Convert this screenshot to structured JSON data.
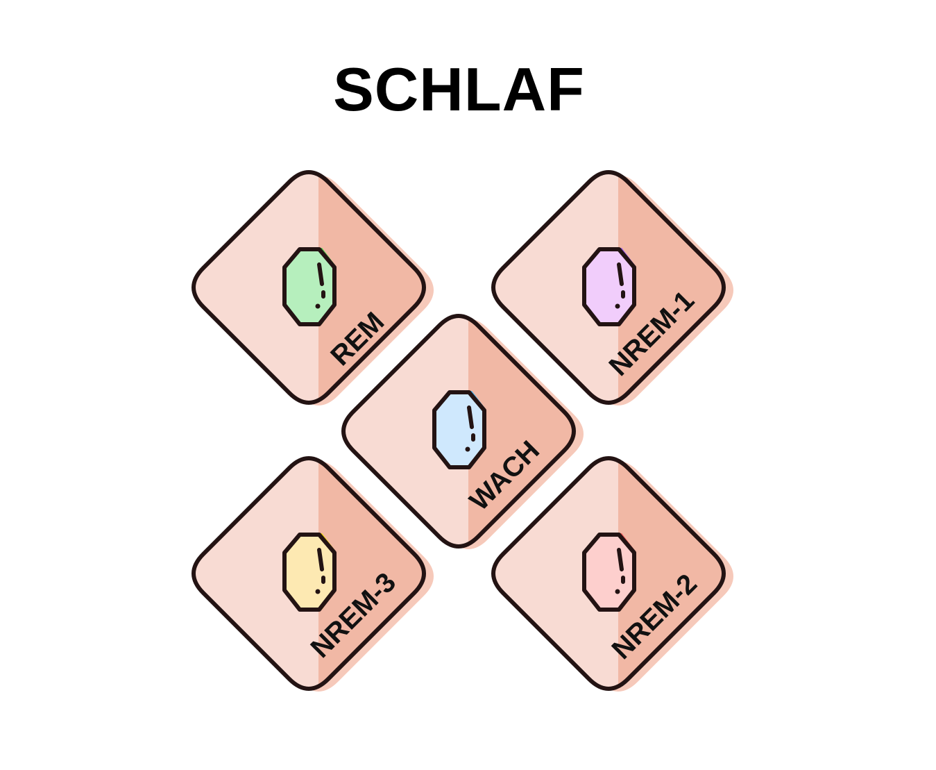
{
  "title": "SCHLAF",
  "colors": {
    "tile_light": "#f8dbd3",
    "tile_dark": "#f1b8a5",
    "tile_shadow": "#f6c9ba",
    "outline": "#231313"
  },
  "stages": [
    {
      "id": "rem",
      "label": "REM",
      "gem_color": "#b6efbd",
      "gem_accent": "#4fd24f",
      "icon": "gem-icon"
    },
    {
      "id": "nrem1",
      "label": "NREM-1",
      "gem_color": "#f1cdfb",
      "gem_accent": "#9a5cf1",
      "icon": "gem-icon"
    },
    {
      "id": "wach",
      "label": "WACH",
      "gem_color": "#cfe8fd",
      "gem_accent": "#4fb6f1",
      "icon": "gem-icon"
    },
    {
      "id": "nrem3",
      "label": "NREM-3",
      "gem_color": "#fde9b2",
      "gem_accent": "#f3d80f",
      "icon": "gem-icon"
    },
    {
      "id": "nrem2",
      "label": "NREM-2",
      "gem_color": "#fdcfcd",
      "gem_accent": "#f25c5c",
      "icon": "gem-icon"
    }
  ]
}
